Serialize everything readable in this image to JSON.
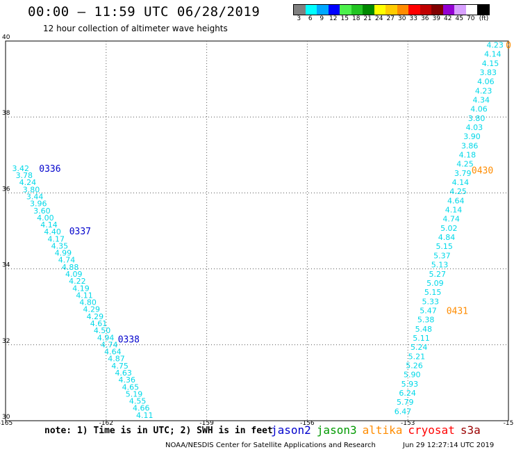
{
  "header": {
    "title": "00:00 — 11:59 UTC 06/28/2019",
    "subtitle": "12 hour collection of altimeter wave heights"
  },
  "colorbar": {
    "unit_label": "(ft)",
    "items": [
      {
        "label": "3",
        "color": "#808080"
      },
      {
        "label": "6",
        "color": "#00ffff"
      },
      {
        "label": "9",
        "color": "#00a8ff"
      },
      {
        "label": "12",
        "color": "#0000ff"
      },
      {
        "label": "15",
        "color": "#4cf04c"
      },
      {
        "label": "18",
        "color": "#22c422"
      },
      {
        "label": "21",
        "color": "#008800"
      },
      {
        "label": "24",
        "color": "#ffff00"
      },
      {
        "label": "27",
        "color": "#ffcc00"
      },
      {
        "label": "30",
        "color": "#ff8c00"
      },
      {
        "label": "33",
        "color": "#ff0000"
      },
      {
        "label": "36",
        "color": "#c00000"
      },
      {
        "label": "39",
        "color": "#800000"
      },
      {
        "label": "42",
        "color": "#9400d3"
      },
      {
        "label": "45",
        "color": "#d8a0ff"
      },
      {
        "label": "70",
        "color": "#ffffff"
      },
      {
        "label": "",
        "color": "#000000"
      }
    ]
  },
  "notes": "note: 1) Time is in UTC; 2) SWH is in feet",
  "satellites": [
    {
      "name": "jason2",
      "color": "#0000cc"
    },
    {
      "name": "jason3",
      "color": "#009900"
    },
    {
      "name": "altika",
      "color": "#ff8c00"
    },
    {
      "name": "cryosat",
      "color": "#ff0000"
    },
    {
      "name": "s3a",
      "color": "#990000"
    }
  ],
  "footer": "NOAA/NESDIS Center for Satellite Applications and Research",
  "timestamp": "Jun 29 12:27:14 UTC 2019",
  "chart_data": {
    "type": "scatter",
    "title": "00:00 — 11:59 UTC 06/28/2019",
    "xlabel": "",
    "ylabel": "",
    "xlim": [
      -165,
      -150
    ],
    "ylim": [
      30,
      40
    ],
    "x_ticks": [
      "-165",
      "-162",
      "-159",
      "-156",
      "-153",
      "-15"
    ],
    "y_ticks": [
      "40",
      "38",
      "36",
      "34",
      "32",
      "30"
    ],
    "grid": true,
    "point_color": "#00d8e8",
    "track1": {
      "satellite": "jason2",
      "lon_start": -164.55,
      "lat_start": 36.65,
      "lon_end": -160.85,
      "lat_end": 30.15,
      "values": [
        "3.42",
        "3.78",
        "4.24",
        "3.80",
        "3.44",
        "3.96",
        "3.60",
        "4.00",
        "4.14",
        "4.40",
        "4.17",
        "4.35",
        "4.99",
        "4.74",
        "4.88",
        "4.09",
        "4.22",
        "4.19",
        "4.11",
        "4.80",
        "4.29",
        "4.29",
        "4.61",
        "4.50",
        "4.94",
        "4.74",
        "4.64",
        "4.87",
        "4.75",
        "4.63",
        "4.36",
        "4.65",
        "5.19",
        "4.55",
        "4.66",
        "4.11"
      ]
    },
    "track2": {
      "satellite": "altika",
      "lon_start": -150.4,
      "lat_start": 39.9,
      "lon_end": -153.15,
      "lat_end": 30.25,
      "values": [
        "4.23",
        "4.14",
        "4.15",
        "3.83",
        "4.06",
        "4.23",
        "4.34",
        "4.06",
        "3.80",
        "4.03",
        "3.90",
        "3.86",
        "4.18",
        "4.25",
        "3.79",
        "4.14",
        "4.25",
        "4.64",
        "4.14",
        "4.74",
        "5.02",
        "4.84",
        "5.15",
        "5.37",
        "5.13",
        "5.27",
        "5.09",
        "5.15",
        "5.33",
        "5.47",
        "5.38",
        "5.48",
        "5.11",
        "5.24",
        "5.21",
        "5.26",
        "5.90",
        "5.93",
        "6.24",
        "5.79",
        "6.47"
      ]
    },
    "time_labels": [
      {
        "text": "0336",
        "lon": -164.0,
        "lat": 36.65,
        "color": "#0000cc"
      },
      {
        "text": "0337",
        "lon": -163.1,
        "lat": 35.0,
        "color": "#0000cc"
      },
      {
        "text": "0338",
        "lon": -161.65,
        "lat": 32.15,
        "color": "#0000cc"
      },
      {
        "text": "0430",
        "lon": -151.1,
        "lat": 36.6,
        "color": "#ff8c00"
      },
      {
        "text": "0431",
        "lon": -151.85,
        "lat": 32.9,
        "color": "#ff8c00"
      },
      {
        "text": "0",
        "lon": -150.08,
        "lat": 39.9,
        "color": "#ff8c00"
      }
    ]
  }
}
